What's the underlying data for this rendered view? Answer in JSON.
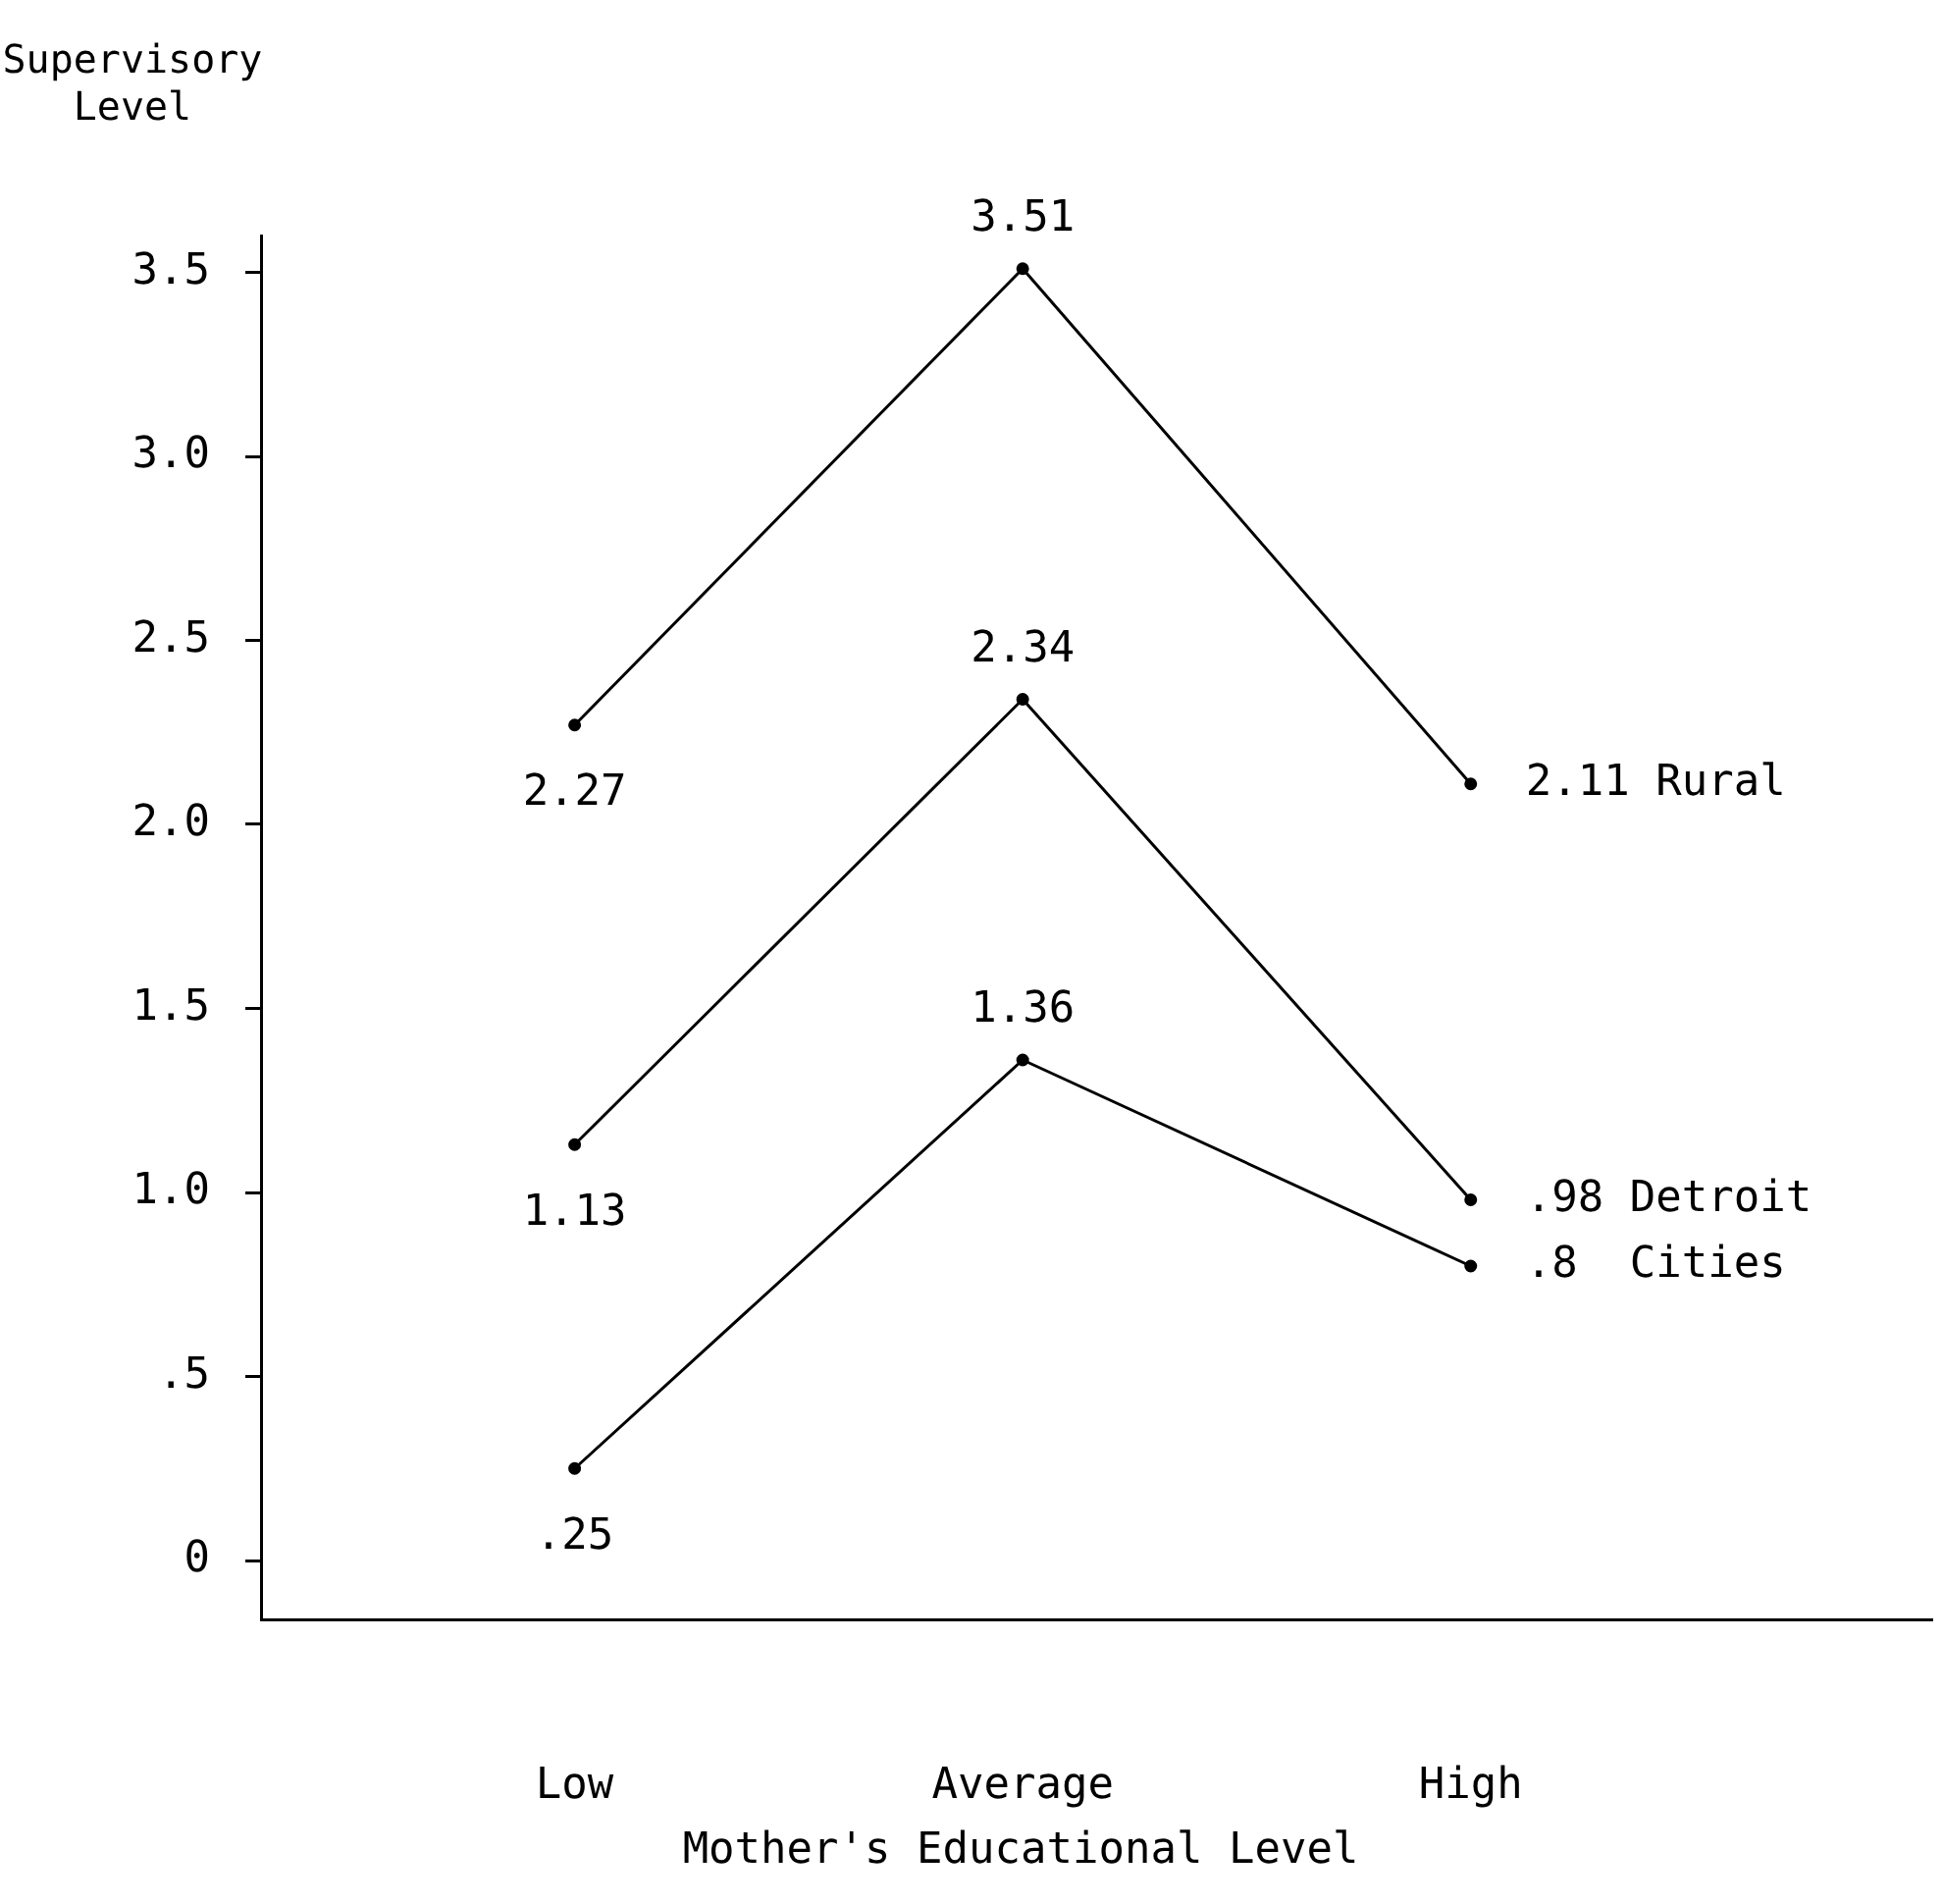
{
  "chart_data": {
    "type": "line",
    "xlabel": "Mother's Educational Level",
    "ylabel": "Supervisory Level",
    "categories": [
      "Low",
      "Average",
      "High"
    ],
    "series": [
      {
        "name": "Rural",
        "color": "#000000",
        "values": [
          2.27,
          3.51,
          2.11
        ],
        "value_labels": [
          "2.27",
          "3.51",
          "2.11"
        ]
      },
      {
        "name": "Detroit",
        "color": "#000000",
        "values": [
          1.13,
          2.34,
          0.98
        ],
        "value_labels": [
          "1.13",
          "2.34",
          ".98"
        ]
      },
      {
        "name": "Cities",
        "color": "#000000",
        "values": [
          0.25,
          1.36,
          0.8
        ],
        "value_labels": [
          ".25",
          "1.36",
          ".8"
        ]
      }
    ],
    "ylim": [
      -0.16,
      3.6
    ],
    "yticks": [
      0,
      {
        "value": 0.5,
        "label": ".5"
      },
      {
        "value": 1,
        "label": "1.0"
      },
      {
        "value": 1.5,
        "label": "1.5"
      },
      {
        "value": 2,
        "label": "2.0"
      },
      {
        "value": 2.5,
        "label": "2.5"
      },
      {
        "value": 3,
        "label": "3.0"
      },
      {
        "value": 3.5,
        "label": "3.5"
      }
    ],
    "grid": false,
    "legend": false,
    "marker": "circle",
    "line_style": "solid"
  }
}
